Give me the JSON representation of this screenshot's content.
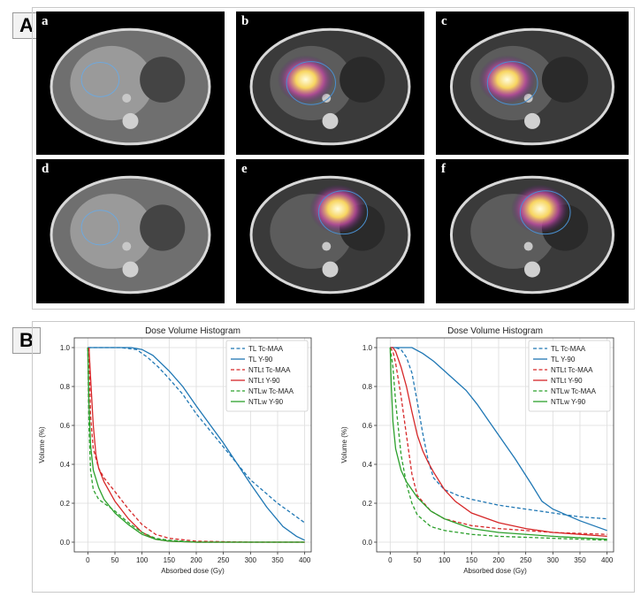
{
  "panels": {
    "A": "A",
    "B": "B"
  },
  "scans": [
    {
      "letter": "a",
      "style": "ct"
    },
    {
      "letter": "b",
      "style": "spect"
    },
    {
      "letter": "c",
      "style": "spect"
    },
    {
      "letter": "d",
      "style": "ct"
    },
    {
      "letter": "e",
      "style": "spect"
    },
    {
      "letter": "f",
      "style": "spect"
    }
  ],
  "colors": {
    "tl": "#1f77b4",
    "ntlt": "#d62728",
    "ntlw": "#2ca02c"
  },
  "chart_data": [
    {
      "type": "line",
      "title": "Dose Volume Histogram",
      "xlabel": "Absorbed dose (Gy)",
      "ylabel": "Volume (%)",
      "xlim": [
        -25,
        412
      ],
      "ylim": [
        -0.05,
        1.05
      ],
      "xticks": [
        0,
        50,
        100,
        150,
        200,
        250,
        300,
        350,
        400
      ],
      "yticks": [
        0.0,
        0.2,
        0.4,
        0.6,
        0.8,
        1.0
      ],
      "grid": true,
      "legend": "top-right",
      "series": [
        {
          "name": "TL Tc-MAA",
          "color": "tl",
          "dash": true,
          "x": [
            0,
            30,
            60,
            90,
            110,
            130,
            150,
            175,
            200,
            250,
            300,
            350,
            400
          ],
          "y": [
            1.0,
            1.0,
            1.0,
            0.99,
            0.95,
            0.9,
            0.84,
            0.76,
            0.66,
            0.49,
            0.32,
            0.2,
            0.1
          ]
        },
        {
          "name": "TL Y-90",
          "color": "tl",
          "dash": false,
          "x": [
            0,
            40,
            80,
            100,
            120,
            150,
            175,
            200,
            250,
            300,
            330,
            360,
            385,
            400
          ],
          "y": [
            1.0,
            1.0,
            1.0,
            0.99,
            0.96,
            0.88,
            0.8,
            0.7,
            0.51,
            0.3,
            0.18,
            0.08,
            0.03,
            0.01
          ]
        },
        {
          "name": "NTLt Tc-MAA",
          "color": "ntlt",
          "dash": true,
          "x": [
            2,
            5,
            10,
            20,
            30,
            50,
            75,
            100,
            125,
            150,
            200,
            300,
            400
          ],
          "y": [
            1.0,
            0.65,
            0.48,
            0.38,
            0.33,
            0.26,
            0.17,
            0.09,
            0.04,
            0.02,
            0.005,
            0.0,
            0.0
          ]
        },
        {
          "name": "NTLt Y-90",
          "color": "ntlt",
          "dash": false,
          "x": [
            2,
            5,
            10,
            15,
            20,
            30,
            50,
            75,
            100,
            125,
            150,
            200,
            300,
            400
          ],
          "y": [
            1.0,
            0.85,
            0.6,
            0.45,
            0.38,
            0.31,
            0.21,
            0.12,
            0.05,
            0.015,
            0.005,
            0.0,
            0.0,
            0.0
          ]
        },
        {
          "name": "NTLw Tc-MAA",
          "color": "ntlw",
          "dash": true,
          "x": [
            0,
            2,
            5,
            10,
            20,
            30,
            50,
            75,
            100,
            125,
            150,
            200,
            300,
            400
          ],
          "y": [
            1.0,
            0.6,
            0.37,
            0.27,
            0.22,
            0.2,
            0.16,
            0.1,
            0.05,
            0.02,
            0.01,
            0.0,
            0.0,
            0.0
          ]
        },
        {
          "name": "NTLw Y-90",
          "color": "ntlw",
          "dash": false,
          "x": [
            0,
            2,
            5,
            10,
            20,
            30,
            50,
            75,
            100,
            125,
            150,
            200,
            300,
            400
          ],
          "y": [
            1.0,
            0.72,
            0.5,
            0.37,
            0.28,
            0.22,
            0.15,
            0.09,
            0.04,
            0.015,
            0.005,
            0.0,
            0.0,
            0.0
          ]
        }
      ]
    },
    {
      "type": "line",
      "title": "Dose Volume Histogram",
      "xlabel": "Absorbed dose (Gy)",
      "ylabel": "Volume (%)",
      "xlim": [
        -25,
        412
      ],
      "ylim": [
        -0.05,
        1.05
      ],
      "xticks": [
        0,
        50,
        100,
        150,
        200,
        250,
        300,
        350,
        400
      ],
      "yticks": [
        0.0,
        0.2,
        0.4,
        0.6,
        0.8,
        1.0
      ],
      "grid": true,
      "legend": "top-right",
      "series": [
        {
          "name": "TL Tc-MAA",
          "color": "tl",
          "dash": true,
          "x": [
            0,
            10,
            20,
            30,
            40,
            50,
            60,
            70,
            80,
            100,
            125,
            150,
            200,
            250,
            300,
            350,
            400
          ],
          "y": [
            1.0,
            1.0,
            0.99,
            0.95,
            0.87,
            0.72,
            0.56,
            0.42,
            0.33,
            0.27,
            0.24,
            0.22,
            0.19,
            0.17,
            0.15,
            0.13,
            0.12
          ]
        },
        {
          "name": "TL Y-90",
          "color": "tl",
          "dash": false,
          "x": [
            0,
            20,
            40,
            60,
            80,
            100,
            120,
            140,
            160,
            180,
            200,
            230,
            260,
            280,
            300,
            350,
            400
          ],
          "y": [
            1.0,
            1.0,
            1.0,
            0.97,
            0.93,
            0.88,
            0.83,
            0.78,
            0.71,
            0.63,
            0.55,
            0.43,
            0.3,
            0.21,
            0.17,
            0.11,
            0.06
          ]
        },
        {
          "name": "NTLt Tc-MAA",
          "color": "ntlt",
          "dash": true,
          "x": [
            0,
            5,
            10,
            20,
            30,
            40,
            50,
            75,
            100,
            150,
            200,
            300,
            400
          ],
          "y": [
            1.0,
            0.98,
            0.92,
            0.75,
            0.55,
            0.35,
            0.24,
            0.16,
            0.12,
            0.085,
            0.07,
            0.05,
            0.04
          ]
        },
        {
          "name": "NTLt Y-90",
          "color": "ntlt",
          "dash": false,
          "x": [
            0,
            5,
            10,
            20,
            30,
            40,
            50,
            60,
            70,
            80,
            100,
            120,
            150,
            200,
            250,
            300,
            400
          ],
          "y": [
            1.0,
            1.0,
            0.98,
            0.9,
            0.8,
            0.67,
            0.55,
            0.47,
            0.41,
            0.36,
            0.27,
            0.21,
            0.15,
            0.1,
            0.07,
            0.05,
            0.03
          ]
        },
        {
          "name": "NTLw Tc-MAA",
          "color": "ntlw",
          "dash": true,
          "x": [
            0,
            5,
            10,
            20,
            30,
            40,
            50,
            75,
            100,
            150,
            200,
            300,
            400
          ],
          "y": [
            1.0,
            0.9,
            0.72,
            0.45,
            0.3,
            0.2,
            0.14,
            0.08,
            0.06,
            0.04,
            0.03,
            0.02,
            0.01
          ]
        },
        {
          "name": "NTLw Y-90",
          "color": "ntlw",
          "dash": false,
          "x": [
            0,
            2,
            5,
            10,
            20,
            30,
            40,
            50,
            75,
            100,
            150,
            200,
            300,
            400
          ],
          "y": [
            1.0,
            0.8,
            0.62,
            0.48,
            0.37,
            0.31,
            0.27,
            0.23,
            0.16,
            0.12,
            0.07,
            0.05,
            0.03,
            0.015
          ]
        }
      ]
    }
  ]
}
